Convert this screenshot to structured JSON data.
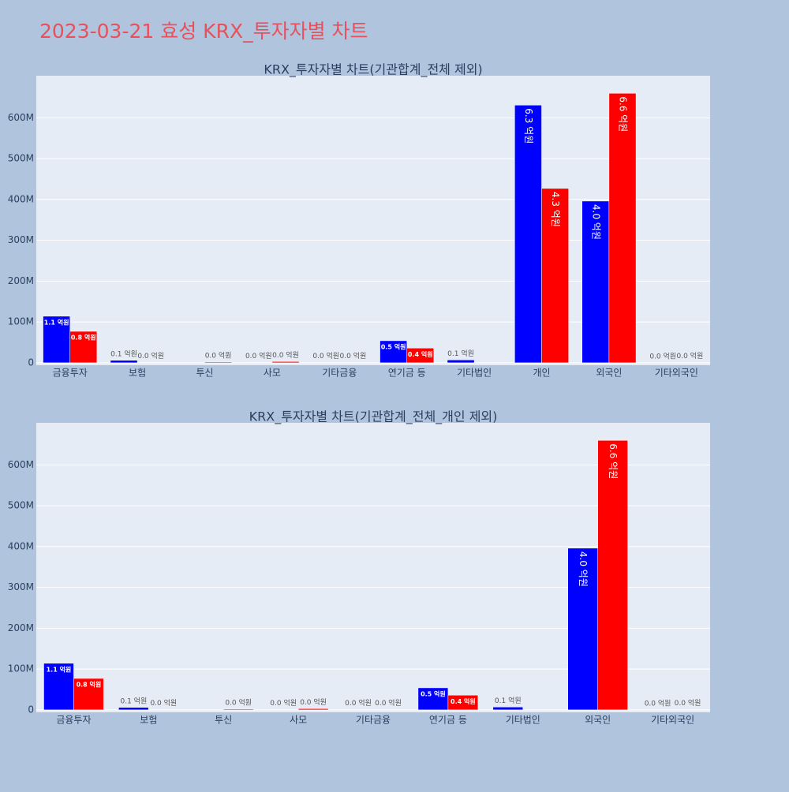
{
  "title": "2023-03-21 효성 KRX_투자자별 차트",
  "chart_data": [
    {
      "type": "bar",
      "title": "KRX_투자자별 차트(기관합계_전체 제외)",
      "categories": [
        "금융투자",
        "보험",
        "투신",
        "사모",
        "기타금융",
        "연기금 등",
        "기타법인",
        "개인",
        "외국인",
        "기타외국인"
      ],
      "series": [
        {
          "color": "#0000ff",
          "values": [
            114000000,
            6000000,
            null,
            500000,
            300000,
            54000000,
            7000000,
            631000000,
            396000000,
            200000
          ],
          "value_labels": [
            "1.1 억원",
            "0.1 억원",
            null,
            "0.0 억원",
            "0.0 억원",
            "0.5 억원",
            "0.1 억원",
            "6.3 억원",
            "4.0 억원",
            "0.0 억원"
          ]
        },
        {
          "color": "#ff0000",
          "values": [
            77000000,
            500000,
            2000000,
            3000000,
            300000,
            36000000,
            null,
            427000000,
            660000000,
            300000
          ],
          "value_labels": [
            "0.8 억원",
            "0.0 억원",
            "0.0 억원",
            "0.0 억원",
            "0.0 억원",
            "0.4 억원",
            null,
            "4.3 억원",
            "6.6 억원",
            "0.0 억원"
          ]
        }
      ],
      "ylim": [
        -6000000,
        703000000
      ],
      "yticks": [
        0,
        {
          "value": 100000000,
          "label": "100M"
        },
        {
          "value": 200000000,
          "label": "200M"
        },
        {
          "value": 300000000,
          "label": "300M"
        },
        {
          "value": 400000000,
          "label": "400M"
        },
        {
          "value": 500000000,
          "label": "500M"
        },
        {
          "value": 600000000,
          "label": "600M"
        }
      ],
      "grid": true
    },
    {
      "type": "bar",
      "title": "KRX_투자자별 차트(기관합계_전체_개인 제외)",
      "categories": [
        "금융투자",
        "보험",
        "투신",
        "사모",
        "기타금융",
        "연기금 등",
        "기타법인",
        "외국인",
        "기타외국인"
      ],
      "series": [
        {
          "color": "#0000ff",
          "values": [
            114000000,
            6000000,
            null,
            500000,
            300000,
            54000000,
            7000000,
            396000000,
            200000
          ],
          "value_labels": [
            "1.1 억원",
            "0.1 억원",
            null,
            "0.0 억원",
            "0.0 억원",
            "0.5 억원",
            "0.1 억원",
            "4.0 억원",
            "0.0 억원"
          ]
        },
        {
          "color": "#ff0000",
          "values": [
            77000000,
            500000,
            2000000,
            3000000,
            300000,
            36000000,
            null,
            660000000,
            300000
          ],
          "value_labels": [
            "0.8 억원",
            "0.0 억원",
            "0.0 억원",
            "0.0 억원",
            "0.0 억원",
            "0.4 억원",
            null,
            "6.6 억원",
            "0.0 억원"
          ]
        }
      ],
      "ylim": [
        -6000000,
        703000000
      ],
      "yticks": [
        0,
        {
          "value": 100000000,
          "label": "100M"
        },
        {
          "value": 200000000,
          "label": "200M"
        },
        {
          "value": 300000000,
          "label": "300M"
        },
        {
          "value": 400000000,
          "label": "400M"
        },
        {
          "value": 500000000,
          "label": "500M"
        },
        {
          "value": 600000000,
          "label": "600M"
        }
      ],
      "grid": true
    }
  ]
}
